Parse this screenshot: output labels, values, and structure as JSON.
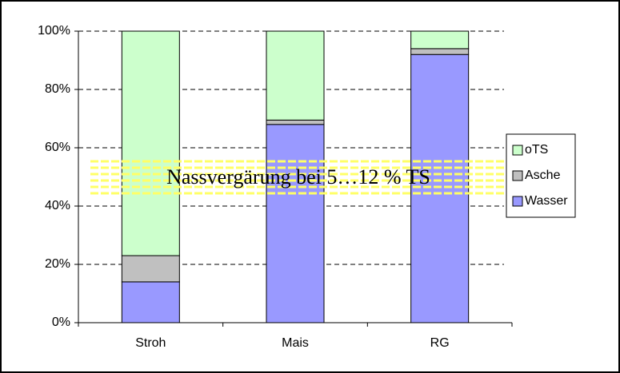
{
  "chart_data": {
    "type": "stacked_bar_percent",
    "categories": [
      "Stroh",
      "Mais",
      "RG"
    ],
    "series": [
      {
        "name": "Wasser",
        "color": "#9999ff",
        "values": [
          14,
          68,
          92
        ]
      },
      {
        "name": "Asche",
        "color": "#c0c0c0",
        "values": [
          9,
          1.5,
          2
        ]
      },
      {
        "name": "oTS",
        "color": "#ccffcc",
        "values": [
          77,
          30.5,
          6
        ]
      }
    ],
    "ylim": [
      0,
      100
    ],
    "yticks": [
      {
        "value": 0,
        "label": "0%"
      },
      {
        "value": 20,
        "label": "20%"
      },
      {
        "value": 40,
        "label": "40%"
      },
      {
        "value": 60,
        "label": "60%"
      },
      {
        "value": 80,
        "label": "80%"
      },
      {
        "value": 100,
        "label": "100%"
      }
    ],
    "grid": true,
    "annotation": "Nassvergärung bei 5…12 % TS"
  }
}
